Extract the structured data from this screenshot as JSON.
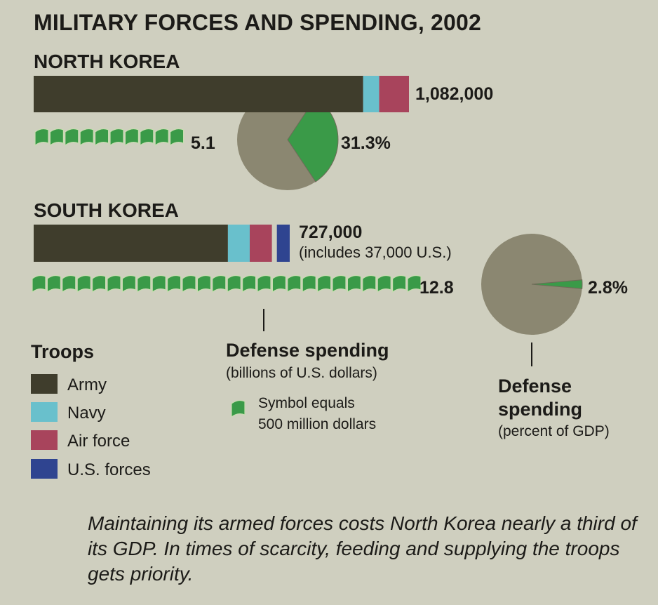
{
  "title": "MILITARY FORCES AND SPENDING, 2002",
  "colors": {
    "army": "#3f3d2c",
    "navy": "#69c0cc",
    "air_force": "#a8445c",
    "us_forces": "#2f4490",
    "money": "#3a9a48",
    "pie_rest": "#8b8771"
  },
  "chart_data": [
    {
      "type": "bar",
      "title": "Troops",
      "units": "troops",
      "series": [
        {
          "country": "NORTH KOREA",
          "total_label": "1,082,000",
          "total": 1082000,
          "note": "",
          "segments": [
            {
              "name": "Army",
              "value": 950000
            },
            {
              "name": "Navy",
              "value": 46000
            },
            {
              "name": "Air force",
              "value": 86000
            }
          ]
        },
        {
          "country": "SOUTH KOREA",
          "total_label": "727,000",
          "total": 727000,
          "note": "(includes 37,000 U.S.)",
          "segments": [
            {
              "name": "Army",
              "value": 560000
            },
            {
              "name": "Navy",
              "value": 63000
            },
            {
              "name": "Air force",
              "value": 64000
            },
            {
              "name": "U.S. forces",
              "value": 37000
            }
          ]
        }
      ]
    },
    {
      "type": "pictograph",
      "title": "Defense spending",
      "subtitle": "(billions of U.S. dollars)",
      "symbol_value": 0.5,
      "symbol_note_line1": "Symbol equals",
      "symbol_note_line2": "500 million dollars",
      "values": [
        {
          "country": "NORTH KOREA",
          "value": 5.1,
          "label": "5.1"
        },
        {
          "country": "SOUTH KOREA",
          "value": 12.8,
          "label": "12.8"
        }
      ]
    },
    {
      "type": "pie",
      "title_line1": "Defense",
      "title_line2": "spending",
      "subtitle": "(percent of GDP)",
      "values": [
        {
          "country": "NORTH KOREA",
          "value": 31.3,
          "label": "31.3%"
        },
        {
          "country": "SOUTH KOREA",
          "value": 2.8,
          "label": "2.8%"
        }
      ]
    }
  ],
  "legend": {
    "title": "Troops",
    "items": [
      {
        "label": "Army",
        "color": "#3f3d2c"
      },
      {
        "label": "Navy",
        "color": "#69c0cc"
      },
      {
        "label": "Air force",
        "color": "#a8445c"
      },
      {
        "label": "U.S. forces",
        "color": "#2f4490"
      }
    ]
  },
  "caption": "Maintaining its armed forces costs North Korea nearly a third of its GDP. In times of scarcity, feeding and supplying the troops gets priority."
}
